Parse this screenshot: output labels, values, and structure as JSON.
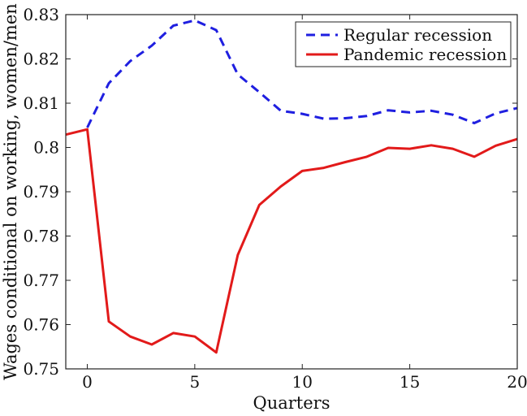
{
  "chart_data": {
    "type": "line",
    "xlabel": "Quarters",
    "ylabel": "Wages conditional on working, women/men",
    "xlim": [
      -1,
      20
    ],
    "ylim": [
      0.75,
      0.83
    ],
    "x_ticks": [
      0,
      5,
      10,
      15,
      20
    ],
    "x_tick_labels": [
      "0",
      "5",
      "10",
      "15",
      "20"
    ],
    "y_ticks": [
      0.75,
      0.76,
      0.77,
      0.78,
      0.79,
      0.8,
      0.81,
      0.82,
      0.83
    ],
    "y_tick_labels": [
      "0.75",
      "0.76",
      "0.77",
      "0.78",
      "0.79",
      "0.8",
      "0.81",
      "0.82",
      "0.83"
    ],
    "grid": false,
    "legend_position": "top-right",
    "series": [
      {
        "name": "Regular recession",
        "color": "#1f1fe0",
        "dash": "dashed",
        "x": [
          0,
          1,
          2,
          3,
          4,
          5,
          6,
          7,
          8,
          9,
          10,
          11,
          12,
          13,
          14,
          15,
          16,
          17,
          18,
          19,
          20
        ],
        "values": [
          0.8045,
          0.8145,
          0.8195,
          0.823,
          0.8275,
          0.8287,
          0.8265,
          0.8165,
          0.8125,
          0.8083,
          0.8076,
          0.8065,
          0.8066,
          0.8071,
          0.8084,
          0.8079,
          0.8083,
          0.8074,
          0.8055,
          0.8077,
          0.8089
        ]
      },
      {
        "name": "Pandemic recession",
        "color": "#e21a1a",
        "dash": "solid",
        "x": [
          -1,
          0,
          1,
          2,
          3,
          4,
          5,
          6,
          7,
          8,
          9,
          10,
          11,
          12,
          13,
          14,
          15,
          16,
          17,
          18,
          19,
          20
        ],
        "values": [
          0.8029,
          0.8041,
          0.7607,
          0.7573,
          0.7555,
          0.7581,
          0.7573,
          0.7537,
          0.7757,
          0.787,
          0.7912,
          0.7947,
          0.7954,
          0.7967,
          0.7979,
          0.7999,
          0.7997,
          0.8005,
          0.7997,
          0.7979,
          0.8004,
          0.8019
        ]
      }
    ]
  }
}
